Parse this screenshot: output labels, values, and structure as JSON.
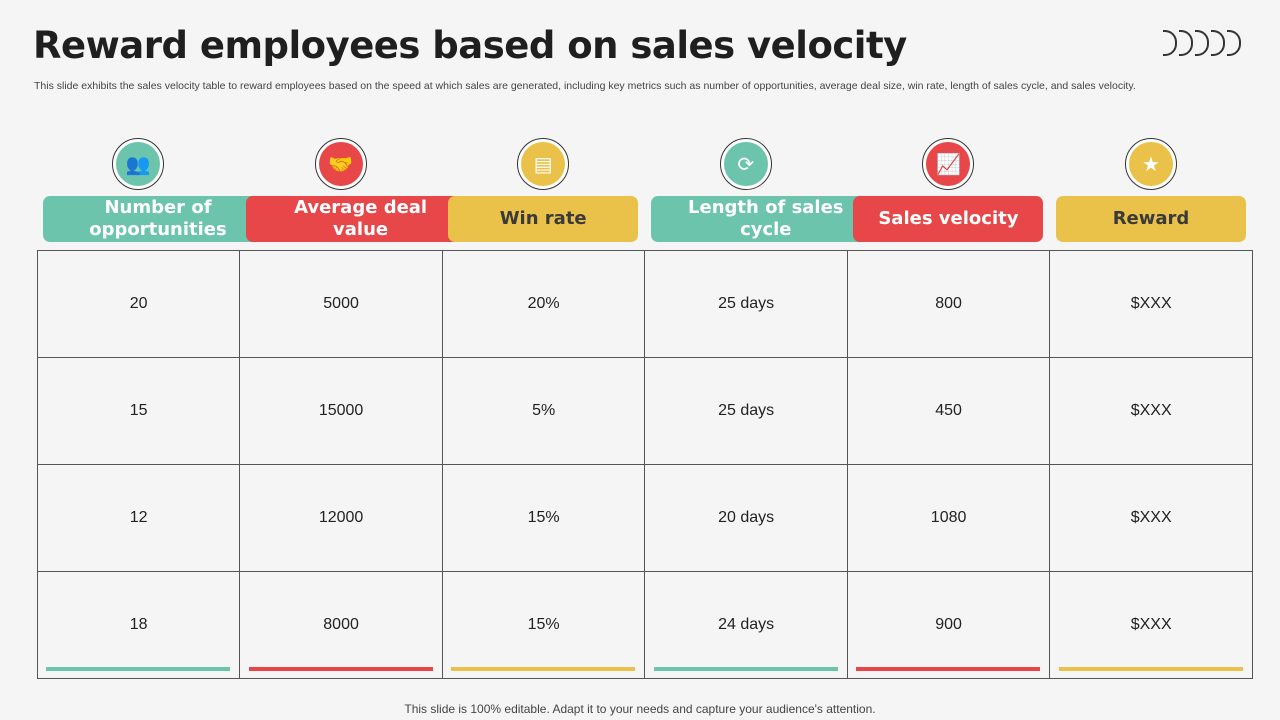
{
  "title": "Reward employees based on sales velocity",
  "subtitle": "This slide exhibits the sales velocity table to reward employees based on the speed at which sales are generated, including key metrics such as number of opportunities, average deal size, win rate,  length of sales cycle, and sales velocity.",
  "colors": {
    "teal": "#6cc4ad",
    "red": "#e8474a",
    "yellow": "#eac24a"
  },
  "columns": [
    {
      "label": "Number of opportunities",
      "icon": "team-growth-icon",
      "glyph": "👥",
      "color": "#6cc4ad",
      "text": "#ffffff"
    },
    {
      "label": "Average deal value",
      "icon": "deal-handshake-icon",
      "glyph": "🤝",
      "color": "#e8474a",
      "text": "#ffffff"
    },
    {
      "label": "Win rate",
      "icon": "document-icon",
      "glyph": "▤",
      "color": "#eac24a",
      "text": "#3a3a3a"
    },
    {
      "label": "Length of sales cycle",
      "icon": "cycle-icon",
      "glyph": "⟳",
      "color": "#6cc4ad",
      "text": "#ffffff"
    },
    {
      "label": "Sales velocity",
      "icon": "growth-chart-icon",
      "glyph": "📈",
      "color": "#e8474a",
      "text": "#ffffff"
    },
    {
      "label": "Reward",
      "icon": "award-badge-icon",
      "glyph": "★",
      "color": "#eac24a",
      "text": "#3a3a3a"
    }
  ],
  "rows": [
    [
      "20",
      "5000",
      "20%",
      "25 days",
      "800",
      "$XXX"
    ],
    [
      "15",
      "15000",
      "5%",
      "25 days",
      "450",
      "$XXX"
    ],
    [
      "12",
      "12000",
      "15%",
      "20 days",
      "1080",
      "$XXX"
    ],
    [
      "18",
      "8000",
      "15%",
      "24 days",
      "900",
      "$XXX"
    ]
  ],
  "footer": "This slide is 100% editable. Adapt it to your needs and capture your audience's attention."
}
